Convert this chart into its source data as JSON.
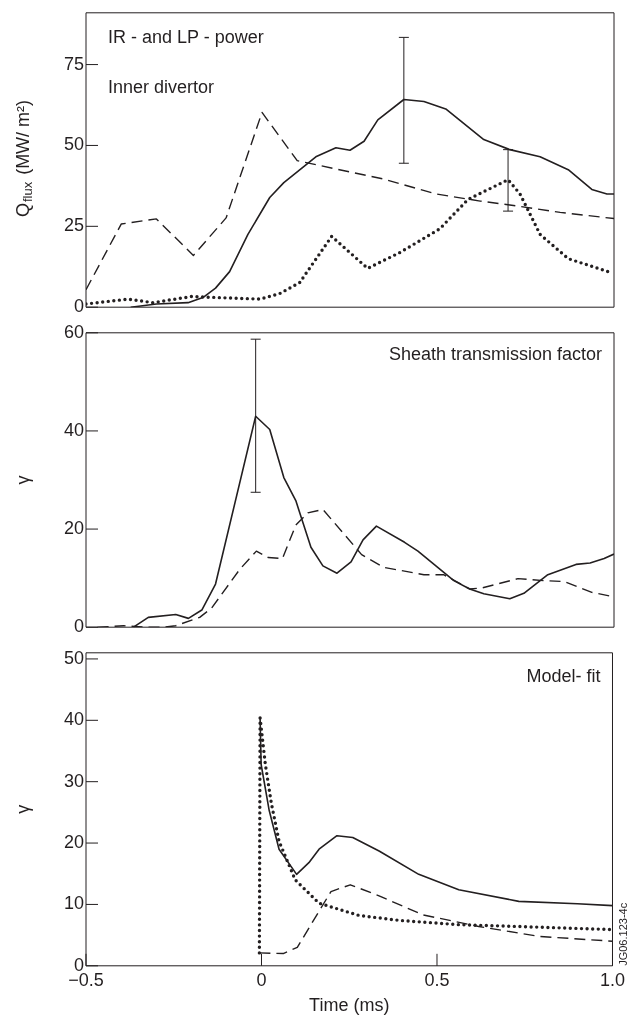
{
  "chart_data": [
    {
      "type": "line",
      "ylabel": "Q$_{flux}$ (MW/ m²)",
      "annotations": [
        "IR - and LP - power",
        "Inner divertor"
      ],
      "xlim": [
        -0.5,
        1
      ],
      "ylim": [
        0,
        91
      ],
      "yticks": [
        0,
        25,
        50,
        75
      ],
      "tick_labels": "y",
      "series": [
        {
          "color": "#231f20",
          "line_style": "dashed",
          "x": [
            -0.5,
            -0.4,
            -0.3,
            -0.195,
            -0.102,
            0.0,
            0.1,
            0.22,
            0.346,
            0.494,
            0.62,
            0.704,
            0.847,
            1.0
          ],
          "values": [
            5.4,
            25.7,
            27.3,
            16,
            27.6,
            60.2,
            45.3,
            42.5,
            39.6,
            35,
            32.8,
            31.6,
            29.3,
            27.4
          ]
        },
        {
          "color": "#231f20",
          "line_style": "solid",
          "x": [
            -0.373,
            -0.3,
            -0.21,
            -0.166,
            -0.132,
            -0.092,
            -0.04,
            0.022,
            0.062,
            0.153,
            0.21,
            0.25,
            0.29,
            0.329,
            0.403,
            0.46,
            0.522,
            0.63,
            0.704,
            0.79,
            0.87,
            0.937,
            0.98,
            1.0
          ],
          "values": [
            0,
            1,
            1.4,
            3.1,
            5.9,
            11,
            22.5,
            33.9,
            38.5,
            46.5,
            49.3,
            48.5,
            51.3,
            57.9,
            64.2,
            63.6,
            61.3,
            51.8,
            48.7,
            46.5,
            42.5,
            36.4,
            35,
            35
          ],
          "errors": [
            null,
            null,
            null,
            null,
            null,
            null,
            null,
            null,
            null,
            null,
            null,
            null,
            null,
            null,
            [
              44.5,
              83.4
            ],
            null,
            null,
            null,
            null,
            null,
            null,
            null,
            null,
            null
          ]
        },
        {
          "color": "#231f20",
          "line_style": "dotted",
          "x": [
            -0.5,
            -0.38,
            -0.31,
            -0.2,
            -0.109,
            -0.006,
            0.05,
            0.107,
            0.198,
            0.3,
            0.39,
            0.505,
            0.585,
            0.699,
            0.733,
            0.79,
            0.87,
            0.983
          ],
          "values": [
            1,
            2.5,
            1.4,
            3.3,
            2.9,
            2.5,
            4.2,
            7.6,
            21.9,
            12,
            16.8,
            24.2,
            33.3,
            39.4,
            35,
            22.5,
            15,
            11
          ],
          "errors": [
            null,
            null,
            null,
            null,
            null,
            null,
            null,
            null,
            null,
            null,
            null,
            null,
            null,
            [
              29.7,
              48.7
            ],
            null,
            null,
            null,
            null
          ]
        }
      ]
    },
    {
      "type": "line",
      "ylabel": "γ",
      "annotations": [
        "Sheath transmission factor"
      ],
      "xlim": [
        -0.5,
        1
      ],
      "ylim": [
        0,
        60
      ],
      "yticks": [
        0,
        20,
        40,
        60
      ],
      "tick_labels": "y",
      "series": [
        {
          "color": "#231f20",
          "line_style": "solid",
          "x": [
            -0.365,
            -0.323,
            -0.245,
            -0.209,
            -0.171,
            -0.132,
            -0.018,
            0.022,
            0.062,
            0.096,
            0.139,
            0.173,
            0.213,
            0.253,
            0.287,
            0.325,
            0.405,
            0.443,
            0.545,
            0.59,
            0.63,
            0.704,
            0.744,
            0.812,
            0.892,
            0.932,
            0.972,
            1.0
          ],
          "values": [
            0,
            2,
            2.6,
            1.8,
            3.5,
            8.8,
            43,
            40.3,
            30.5,
            25.8,
            16.3,
            12.5,
            11,
            13.3,
            17.8,
            20.6,
            17.3,
            15.5,
            9.5,
            7.8,
            6.8,
            5.8,
            6.9,
            10.7,
            12.8,
            13.1,
            14,
            14.9
          ],
          "errors": [
            null,
            null,
            null,
            null,
            null,
            null,
            [
              27.5,
              58.7
            ],
            null,
            null,
            null,
            null,
            null,
            null,
            null,
            null,
            null,
            null,
            null,
            null,
            null,
            null,
            null,
            null,
            null,
            null,
            null,
            null,
            null
          ]
        },
        {
          "color": "#231f20",
          "line_style": "dashed",
          "x": [
            -0.467,
            -0.393,
            -0.325,
            -0.28,
            -0.245,
            -0.177,
            -0.143,
            -0.063,
            -0.016,
            0.018,
            0.058,
            0.096,
            0.13,
            0.173,
            0.283,
            0.346,
            0.46,
            0.516,
            0.59,
            0.625,
            0.727,
            0.8,
            0.858,
            0.937,
            1.0
          ],
          "values": [
            0,
            0.3,
            0,
            0,
            0.3,
            2,
            3.9,
            11.8,
            15.5,
            14.2,
            14,
            20.8,
            23.3,
            24,
            14.8,
            12.2,
            10.7,
            10.7,
            7.8,
            8,
            9.9,
            9.5,
            9.3,
            7.1,
            6.2
          ]
        }
      ]
    },
    {
      "type": "line",
      "ylabel": "γ",
      "xlabel": "Time (ms)",
      "annotations": [
        "Model- fit",
        "JG06.123-4c"
      ],
      "xlim": [
        -0.5,
        1
      ],
      "ylim": [
        0,
        51
      ],
      "yticks": [
        0,
        10,
        20,
        30,
        40,
        50
      ],
      "xticks": [
        {
          "value": -0.5,
          "label": "−0.5"
        },
        0,
        0.5,
        {
          "value": 1,
          "label": "1.0"
        }
      ],
      "series": [
        {
          "color": "#231f20",
          "line_style": "solid",
          "x": [
            -0.004,
            -0.001,
            0.022,
            0.05,
            0.1,
            0.135,
            0.164,
            0.215,
            0.26,
            0.335,
            0.448,
            0.562,
            0.733,
            0.9,
            1.0
          ],
          "values": [
            40.5,
            32.8,
            25.3,
            19,
            14.9,
            16.8,
            19,
            21.2,
            20.9,
            18.7,
            14.9,
            12.4,
            10.5,
            10.1,
            9.8
          ]
        },
        {
          "color": "#231f20",
          "line_style": "dotted",
          "x": [
            -0.006,
            -0.004,
            0.011,
            0.028,
            0.05,
            0.096,
            0.164,
            0.278,
            0.392,
            0.562,
            0.733,
            1.0
          ],
          "values": [
            2.1,
            40.4,
            32.8,
            26.5,
            20.3,
            14,
            10.2,
            8.2,
            7.4,
            6.7,
            6.4,
            5.9
          ]
        },
        {
          "color": "#231f20",
          "line_style": "dashed",
          "x": [
            -0.006,
            0.062,
            0.102,
            0.164,
            0.198,
            0.253,
            0.335,
            0.46,
            0.619,
            0.79,
            1.0
          ],
          "values": [
            2.1,
            2,
            3,
            8.9,
            12.1,
            13.2,
            11.4,
            8.3,
            6.4,
            4.8,
            4
          ]
        }
      ]
    }
  ]
}
